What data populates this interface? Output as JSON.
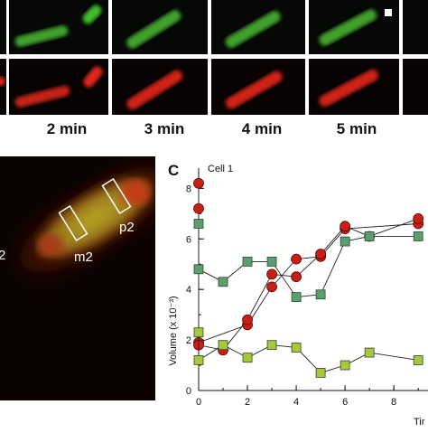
{
  "time_labels": [
    "2 min",
    "3 min",
    "4 min",
    "5 min"
  ],
  "panel_b": {
    "left_edge_label": "2",
    "box_labels": [
      "m2",
      "p2"
    ]
  },
  "panel_c": {
    "letter": "C",
    "cell_title": "Cell 1",
    "ylabel": "Volume (x 10⁻³)",
    "xlabel_visible": "Tir"
  },
  "colors": {
    "red_marker": "#c81e14",
    "green_dark_marker": "#5d9e6e",
    "green_light_marker": "#a8c73c",
    "green_fluor": "#3fbf2a",
    "red_fluor": "#e0261a"
  },
  "chart_data": {
    "type": "scatter",
    "title": "Cell 1",
    "xlabel": "Tir",
    "ylabel": "Volume (x 10⁻³)",
    "xlim": [
      0,
      9.4
    ],
    "ylim": [
      0,
      8.8
    ],
    "xticks": [
      0,
      2,
      4,
      6,
      8
    ],
    "yticks": [
      0,
      2,
      4,
      6,
      8
    ],
    "series": [
      {
        "color": "#c81e14",
        "marker": "circle",
        "x": [
          0,
          0,
          0,
          2,
          3,
          4,
          5,
          6,
          9
        ],
        "y": [
          8.2,
          7.2,
          1.9,
          2.6,
          4.1,
          5.2,
          5.3,
          6.4,
          6.6
        ]
      },
      {
        "color": "#c81e14",
        "marker": "circle",
        "x": [
          0,
          1,
          2,
          3,
          4,
          5,
          6,
          7,
          9
        ],
        "y": [
          1.8,
          1.6,
          2.8,
          4.6,
          4.5,
          5.4,
          6.5,
          6.1,
          6.8
        ]
      },
      {
        "color": "#5d9e6e",
        "marker": "square",
        "x": [
          0,
          0,
          1,
          2,
          3,
          4,
          5,
          6,
          7,
          9
        ],
        "y": [
          6.6,
          4.8,
          4.3,
          5.1,
          5.1,
          3.7,
          3.8,
          5.9,
          6.1,
          6.1
        ]
      },
      {
        "color": "#a8c73c",
        "marker": "square",
        "x": [
          0,
          0,
          1,
          2,
          3,
          4,
          5,
          6,
          7,
          9
        ],
        "y": [
          2.3,
          1.2,
          1.8,
          1.3,
          1.8,
          1.7,
          0.7,
          1.0,
          1.5,
          1.2
        ]
      }
    ]
  }
}
